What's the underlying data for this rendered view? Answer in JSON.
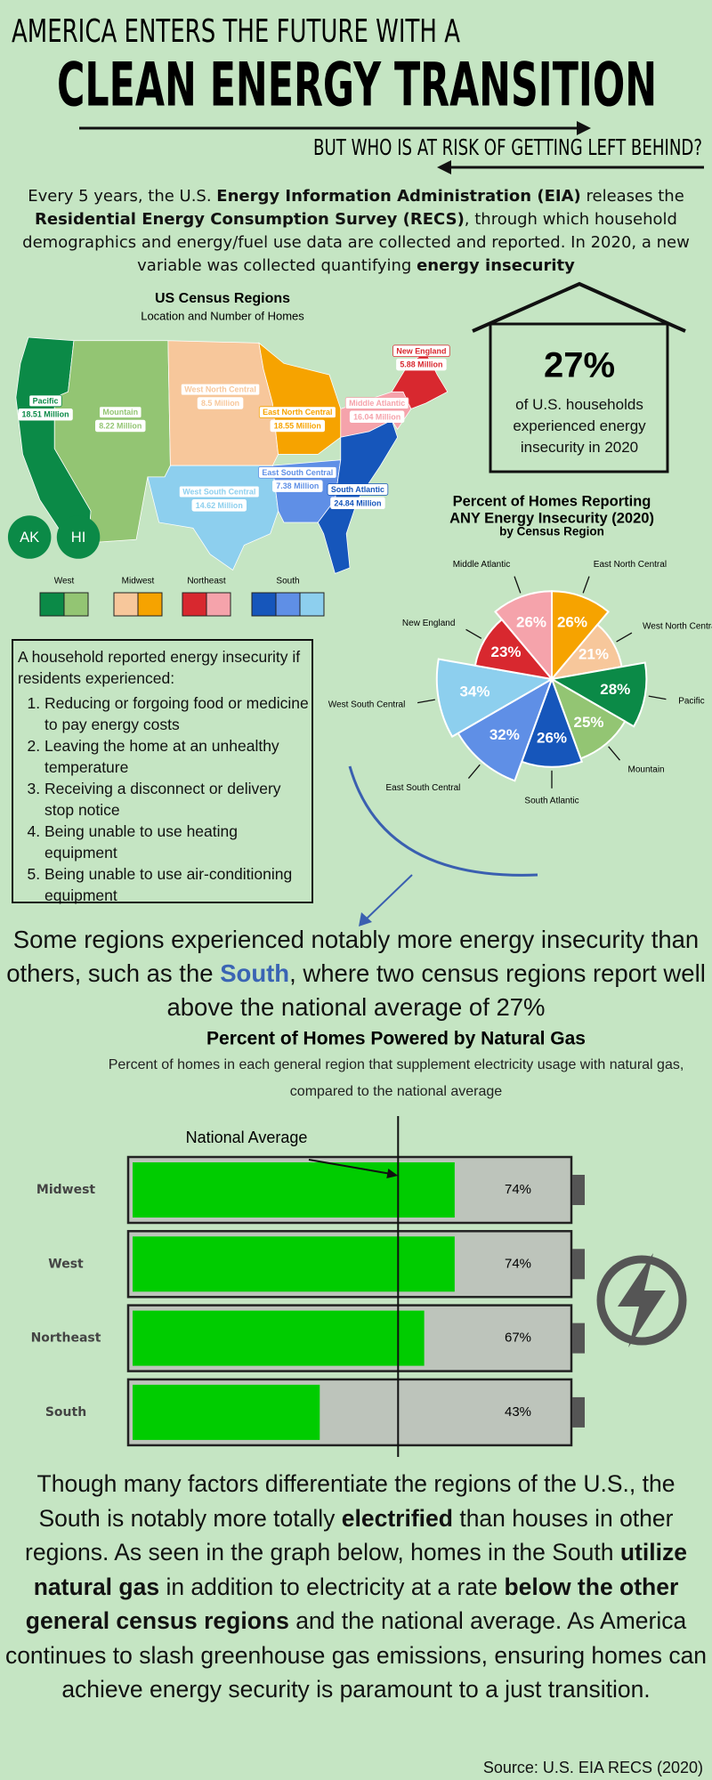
{
  "header": {
    "line1": "AMERICA ENTERS THE FUTURE WITH A",
    "line2": "CLEAN ENERGY TRANSITION",
    "line3": "BUT WHO IS AT RISK OF GETTING LEFT BEHIND?"
  },
  "intro": {
    "segments": [
      {
        "text": "Every 5 years, the U.S. "
      },
      {
        "text": "Energy Information Administration (EIA)",
        "bold": true
      },
      {
        "text": " releases the "
      },
      {
        "text": "Residential Energy Consumption Survey (RECS)",
        "bold": true
      },
      {
        "text": ", through which  household demographics and energy/fuel use data are collected and reported. In 2020, a new variable was collected quantifying "
      },
      {
        "text": "energy insecurity",
        "bold": true
      }
    ]
  },
  "map": {
    "title": "US Census Regions",
    "subtitle": "Location and Number of Homes",
    "regions": [
      {
        "name": "Pacific",
        "label": "18.51 Million",
        "color": "#0b8a47"
      },
      {
        "name": "Mountain",
        "label": "8.22 Million",
        "color": "#93c573"
      },
      {
        "name": "West North Central",
        "label": "8.5 Million",
        "color": "#f7c79b"
      },
      {
        "name": "East North Central",
        "label": "18.55 Million",
        "color": "#f6a300"
      },
      {
        "name": "Middle Atlantic",
        "label": "16.04 Million",
        "color": "#f5a3ab"
      },
      {
        "name": "New England",
        "label": "5.88 Million",
        "color": "#d8282f"
      },
      {
        "name": "West South Central",
        "label": "14.62 Million",
        "color": "#8dcfee"
      },
      {
        "name": "East South Central",
        "label": "7.38 Million",
        "color": "#5f8fe6"
      },
      {
        "name": "South Atlantic",
        "label": "24.84 Million",
        "color": "#1656bb"
      }
    ],
    "insets": [
      "AK",
      "HI"
    ],
    "legend": [
      {
        "name": "West",
        "colors": [
          "#0b8a47",
          "#93c573"
        ]
      },
      {
        "name": "Midwest",
        "colors": [
          "#f7c79b",
          "#f6a300"
        ]
      },
      {
        "name": "Northeast",
        "colors": [
          "#d8282f",
          "#f5a3ab"
        ]
      },
      {
        "name": "South",
        "colors": [
          "#1656bb",
          "#5f8fe6",
          "#8dcfee"
        ]
      }
    ]
  },
  "callout": {
    "value": "27%",
    "text": "of U.S. households experienced energy insecurity in 2020"
  },
  "definition": {
    "intro": "A household reported energy insecurity if residents experienced:",
    "items": [
      "Reducing or forgoing food or medicine to pay energy costs",
      "Leaving the home at an unhealthy temperature",
      "Receiving a disconnect or delivery stop notice",
      "Being unable to use heating equipment",
      "Being unable to use air-conditioning equipment"
    ]
  },
  "finding": {
    "segments": [
      {
        "text": "Some regions experienced notably more energy insecurity than others, such as the "
      },
      {
        "text": "South",
        "bold": true,
        "color": "#3a64b4"
      },
      {
        "text": ", where two census regions report well above the national average of 27%"
      }
    ]
  },
  "conclusion": {
    "segments": [
      {
        "text": "Though many factors differentiate the regions of the U.S., the South is notably more totally "
      },
      {
        "text": "electrified",
        "bold": true
      },
      {
        "text": " than houses in other regions. As seen in the graph below, homes in the South "
      },
      {
        "text": "utilize natural gas",
        "bold": true
      },
      {
        "text": " in addition to electricity at a rate "
      },
      {
        "text": "below the other general census regions",
        "bold": true
      },
      {
        "text": " and the national average. As America continues to slash greenhouse gas emissions, ensuring homes can achieve energy security is paramount to a just transition."
      }
    ]
  },
  "source": "Source: U.S. EIA RECS (2020)",
  "chart_data": [
    {
      "type": "polar",
      "title": [
        "Percent of Homes Reporting",
        "ANY Energy Insecurity (2020)"
      ],
      "subtitle": "by Census Region",
      "categories": [
        "Middle Atlantic",
        "East North Central",
        "West North Central",
        "Pacific",
        "Mountain",
        "South Atlantic",
        "East South Central",
        "West South Central",
        "New England"
      ],
      "values": [
        26,
        26,
        21,
        28,
        25,
        26,
        32,
        34,
        23
      ],
      "value_labels": [
        "26%",
        "26%",
        "21%",
        "28%",
        "25%",
        "26%",
        "32%",
        "34%",
        "23%"
      ],
      "colors": [
        "#f5a3ab",
        "#f6a300",
        "#f7c79b",
        "#0b8a47",
        "#93c573",
        "#1656bb",
        "#5f8fe6",
        "#8dcfee",
        "#d8282f"
      ]
    },
    {
      "type": "battery",
      "title": "Percent of Homes Powered by Natural Gas",
      "subtitle": "Percent of homes in each general region that supplement electricity usage with natural gas, compared to the national average",
      "categories": [
        "Midwest",
        "West",
        "Northeast",
        "South"
      ],
      "values": [
        74,
        74,
        67,
        43
      ],
      "value_labels": [
        "74%",
        "74%",
        "67%",
        "43%"
      ],
      "color": "#00cc00",
      "xlim": [
        0,
        100
      ],
      "reference": {
        "label": "National Average",
        "value": 61
      }
    }
  ]
}
